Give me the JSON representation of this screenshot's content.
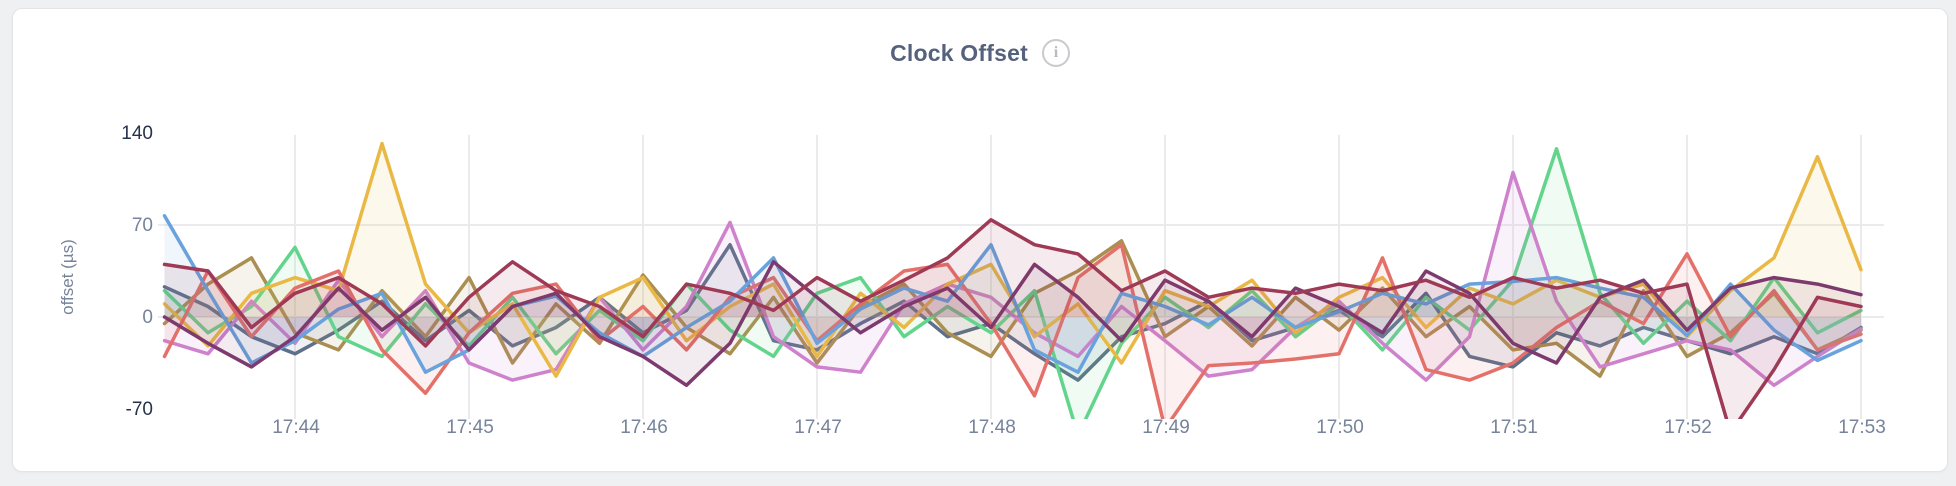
{
  "page": {
    "background_color": "#eff0f2",
    "card_background_color": "#ffffff"
  },
  "header": {
    "title": "Clock Offset",
    "info_icon_glyph": "i"
  },
  "chart_data": {
    "type": "line",
    "title": "Clock Offset",
    "xlabel": "",
    "ylabel": "offset (µs)",
    "ylim": [
      -70,
      140
    ],
    "y_ticks": [
      140,
      70,
      0,
      -70
    ],
    "y_ticks_emphasized": [
      140,
      -70
    ],
    "x_ticks": [
      "17:44",
      "17:45",
      "17:46",
      "17:47",
      "17:48",
      "17:49",
      "17:50",
      "17:51",
      "17:52",
      "17:53"
    ],
    "x_start": "17:43:15",
    "x_step_seconds": 15,
    "grid": {
      "vertical_at_x_ticks": true,
      "horizontal_values": [
        70,
        0
      ],
      "color": "#ebebee"
    },
    "legend_position": "none",
    "line_width": 3.5,
    "fill_opacity": 0.1,
    "series": [
      {
        "name": "series-slate",
        "color": "#5d7089",
        "values": [
          23,
          8,
          -15,
          -28,
          -10,
          12,
          -18,
          5,
          -22,
          -8,
          15,
          -12,
          5,
          55,
          -18,
          -25,
          -5,
          12,
          -15,
          -5,
          -28,
          -48,
          -15,
          -5,
          12,
          -18,
          -8,
          5,
          -15,
          18,
          -30,
          -38,
          -12,
          -22,
          -8,
          -18,
          -28,
          -15,
          -28,
          -8
        ]
      },
      {
        "name": "series-khaki",
        "color": "#ab8e51",
        "values": [
          -5,
          25,
          45,
          -12,
          -25,
          20,
          -15,
          30,
          -35,
          10,
          -20,
          32,
          -8,
          -28,
          15,
          -35,
          8,
          25,
          -12,
          -30,
          18,
          35,
          58,
          -15,
          8,
          -22,
          15,
          -10,
          22,
          -15,
          8,
          -25,
          -20,
          -45,
          20,
          -30,
          -12,
          18,
          -25,
          -10
        ]
      },
      {
        "name": "series-green",
        "color": "#63d48c",
        "values": [
          20,
          -12,
          8,
          53,
          -15,
          -30,
          10,
          -22,
          15,
          -28,
          5,
          -18,
          25,
          -10,
          -30,
          18,
          30,
          -15,
          8,
          -12,
          20,
          -90,
          -20,
          15,
          -8,
          20,
          -15,
          10,
          -25,
          15,
          -10,
          28,
          128,
          18,
          -20,
          12,
          -18,
          30,
          -12,
          5
        ]
      },
      {
        "name": "series-orchid",
        "color": "#cf82cc",
        "values": [
          -18,
          -28,
          12,
          -20,
          28,
          -15,
          20,
          -35,
          -48,
          -40,
          15,
          -25,
          8,
          72,
          -15,
          -38,
          -42,
          10,
          25,
          15,
          -12,
          -30,
          8,
          -18,
          -45,
          -40,
          -8,
          12,
          -20,
          -48,
          -15,
          110,
          12,
          -38,
          -28,
          -18,
          -25,
          -52,
          -30,
          -9
        ]
      },
      {
        "name": "series-gold",
        "color": "#e9b845",
        "values": [
          10,
          -22,
          18,
          30,
          20,
          132,
          25,
          -12,
          10,
          -45,
          15,
          30,
          -18,
          8,
          25,
          -30,
          18,
          -8,
          25,
          40,
          -15,
          10,
          -35,
          20,
          8,
          28,
          -12,
          15,
          30,
          -8,
          22,
          10,
          28,
          15,
          25,
          -15,
          20,
          45,
          122,
          36
        ]
      },
      {
        "name": "series-salmon",
        "color": "#e4706a",
        "values": [
          -30,
          35,
          -15,
          22,
          35,
          -25,
          -58,
          -12,
          18,
          25,
          -18,
          8,
          -25,
          15,
          30,
          -18,
          10,
          35,
          40,
          -5,
          -60,
          30,
          55,
          -85,
          -37,
          -35,
          -32,
          -28,
          45,
          -40,
          -48,
          -35,
          -8,
          12,
          -5,
          48,
          -15,
          20,
          -25,
          -13
        ]
      },
      {
        "name": "series-blue",
        "color": "#69a2dc",
        "values": [
          77,
          20,
          -35,
          -18,
          6,
          18,
          -42,
          -25,
          8,
          16,
          -12,
          -30,
          -8,
          12,
          45,
          -20,
          6,
          22,
          12,
          55,
          -25,
          -42,
          18,
          8,
          -6,
          15,
          -8,
          4,
          18,
          10,
          25,
          27,
          30,
          22,
          15,
          -14,
          25,
          -10,
          -33,
          -18
        ]
      },
      {
        "name": "series-plum",
        "color": "#7c3a6e",
        "values": [
          0,
          -20,
          -38,
          -15,
          22,
          -10,
          15,
          -25,
          8,
          18,
          -15,
          -30,
          -52,
          -20,
          42,
          15,
          -12,
          8,
          22,
          -8,
          40,
          15,
          -18,
          28,
          12,
          -15,
          22,
          8,
          -12,
          35,
          18,
          -20,
          -35,
          15,
          28,
          -10,
          22,
          30,
          25,
          17
        ]
      },
      {
        "name": "series-maroon",
        "color": "#9e3a56",
        "values": [
          40,
          35,
          -8,
          18,
          30,
          10,
          -22,
          15,
          42,
          20,
          8,
          -15,
          25,
          18,
          5,
          30,
          12,
          28,
          45,
          74,
          55,
          48,
          20,
          35,
          15,
          22,
          18,
          25,
          20,
          28,
          15,
          30,
          22,
          28,
          18,
          25,
          -88,
          -40,
          15,
          8
        ]
      }
    ]
  }
}
